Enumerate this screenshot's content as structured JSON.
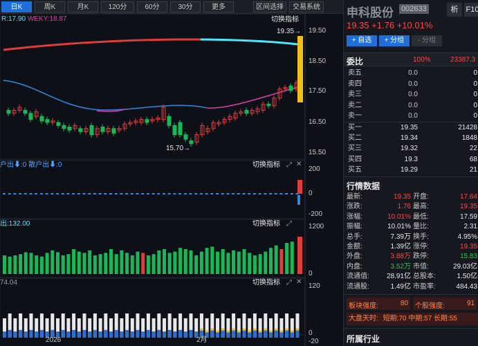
{
  "toolbar": {
    "tabs": [
      "日K",
      "周K",
      "月K",
      "120分",
      "60分",
      "30分",
      "更多"
    ],
    "active": "日K",
    "buttons": [
      "区间选择",
      "交易系统"
    ]
  },
  "main_chart": {
    "legend_r": "R:17.90",
    "legend_weky": "WEKY:18.87",
    "switch_label": "切换指标",
    "price_high_label": "19.35→",
    "price_low_label": "15.70→",
    "y_ticks": [
      "19.50",
      "18.50",
      "17.50",
      "16.50",
      "15.50"
    ],
    "colors": {
      "up": "#e03c3c",
      "down": "#16b858",
      "ma_blue": "#2d8ae0",
      "ma_pink": "#e03ca8",
      "band_red": "#e03c3c",
      "band_cyan": "#4de6ff",
      "bar_yellow": "#f2c012"
    }
  },
  "panel2": {
    "legend": "户出⬇:0 散户出⬇:0",
    "switch_label": "切换指标",
    "y_ticks": [
      "200",
      "0",
      "-200"
    ]
  },
  "panel3": {
    "legend": "出:132.00",
    "switch_label": "切换指标",
    "y_ticks": [
      "1200",
      "0"
    ]
  },
  "panel4": {
    "legend": "74.04",
    "switch_label": "切换指标",
    "y_ticks": [
      "120",
      "0",
      "-20"
    ]
  },
  "x_axis": {
    "labels": [
      "2026",
      "2月"
    ]
  },
  "stock": {
    "name": "申科股份",
    "code": "002633",
    "price": "19.35",
    "change": "+1.76",
    "pct": "+10.01%",
    "btn_analysis": "析",
    "btn_f10": "F10",
    "btn_add_fav": "+ 自选",
    "btn_add_group": "+ 分组",
    "btn_remove_group": "- 分组"
  },
  "order_book": {
    "title": "委比",
    "ratio": "100%",
    "diff": "23387.3",
    "asks": [
      {
        "label": "卖五",
        "price": "0.0",
        "vol": "0"
      },
      {
        "label": "卖四",
        "price": "0.0",
        "vol": "0"
      },
      {
        "label": "卖三",
        "price": "0.0",
        "vol": "0"
      },
      {
        "label": "卖二",
        "price": "0.0",
        "vol": "0"
      },
      {
        "label": "卖一",
        "price": "0.0",
        "vol": "0"
      }
    ],
    "bids": [
      {
        "label": "买一",
        "price": "19.35",
        "vol": "21428"
      },
      {
        "label": "买二",
        "price": "19.34",
        "vol": "1848"
      },
      {
        "label": "买三",
        "price": "19.32",
        "vol": "22"
      },
      {
        "label": "买四",
        "price": "19.3",
        "vol": "68"
      },
      {
        "label": "买五",
        "price": "19.29",
        "vol": "21"
      }
    ]
  },
  "quote": {
    "title": "行情数据",
    "rows": [
      [
        "最新:",
        "19.35",
        "开盘:",
        "17.64"
      ],
      [
        "涨跌:",
        "1.76",
        "最高:",
        "19.35"
      ],
      [
        "涨幅:",
        "10.01%",
        "最低:",
        "17.59"
      ],
      [
        "振幅:",
        "10.01%",
        "量比:",
        "2.31"
      ],
      [
        "总手:",
        "7.39万",
        "换手:",
        "4.95%"
      ],
      [
        "金额:",
        "1.39亿",
        "涨停:",
        "19.35"
      ],
      [
        "外盘:",
        "3.88万",
        "跌停:",
        "15.83"
      ],
      [
        "内盘:",
        "3.52万",
        "市值:",
        "29.03亿"
      ],
      [
        "流通值:",
        "28.91亿",
        "总股本:",
        "1.50亿"
      ],
      [
        "流通股:",
        "1.49亿",
        "市盈率:",
        "484.43"
      ]
    ]
  },
  "strength": {
    "sector_label": "板块强度:",
    "sector_val": "80",
    "stock_label": "个股强度:",
    "stock_val": "91"
  },
  "trend": {
    "label": "大盘天时:",
    "short_label": "短期:",
    "short_val": "70",
    "mid_label": "中期:",
    "mid_val": "57",
    "long_label": "长期:",
    "long_val": "55"
  },
  "industry": {
    "title": "所属行业"
  }
}
